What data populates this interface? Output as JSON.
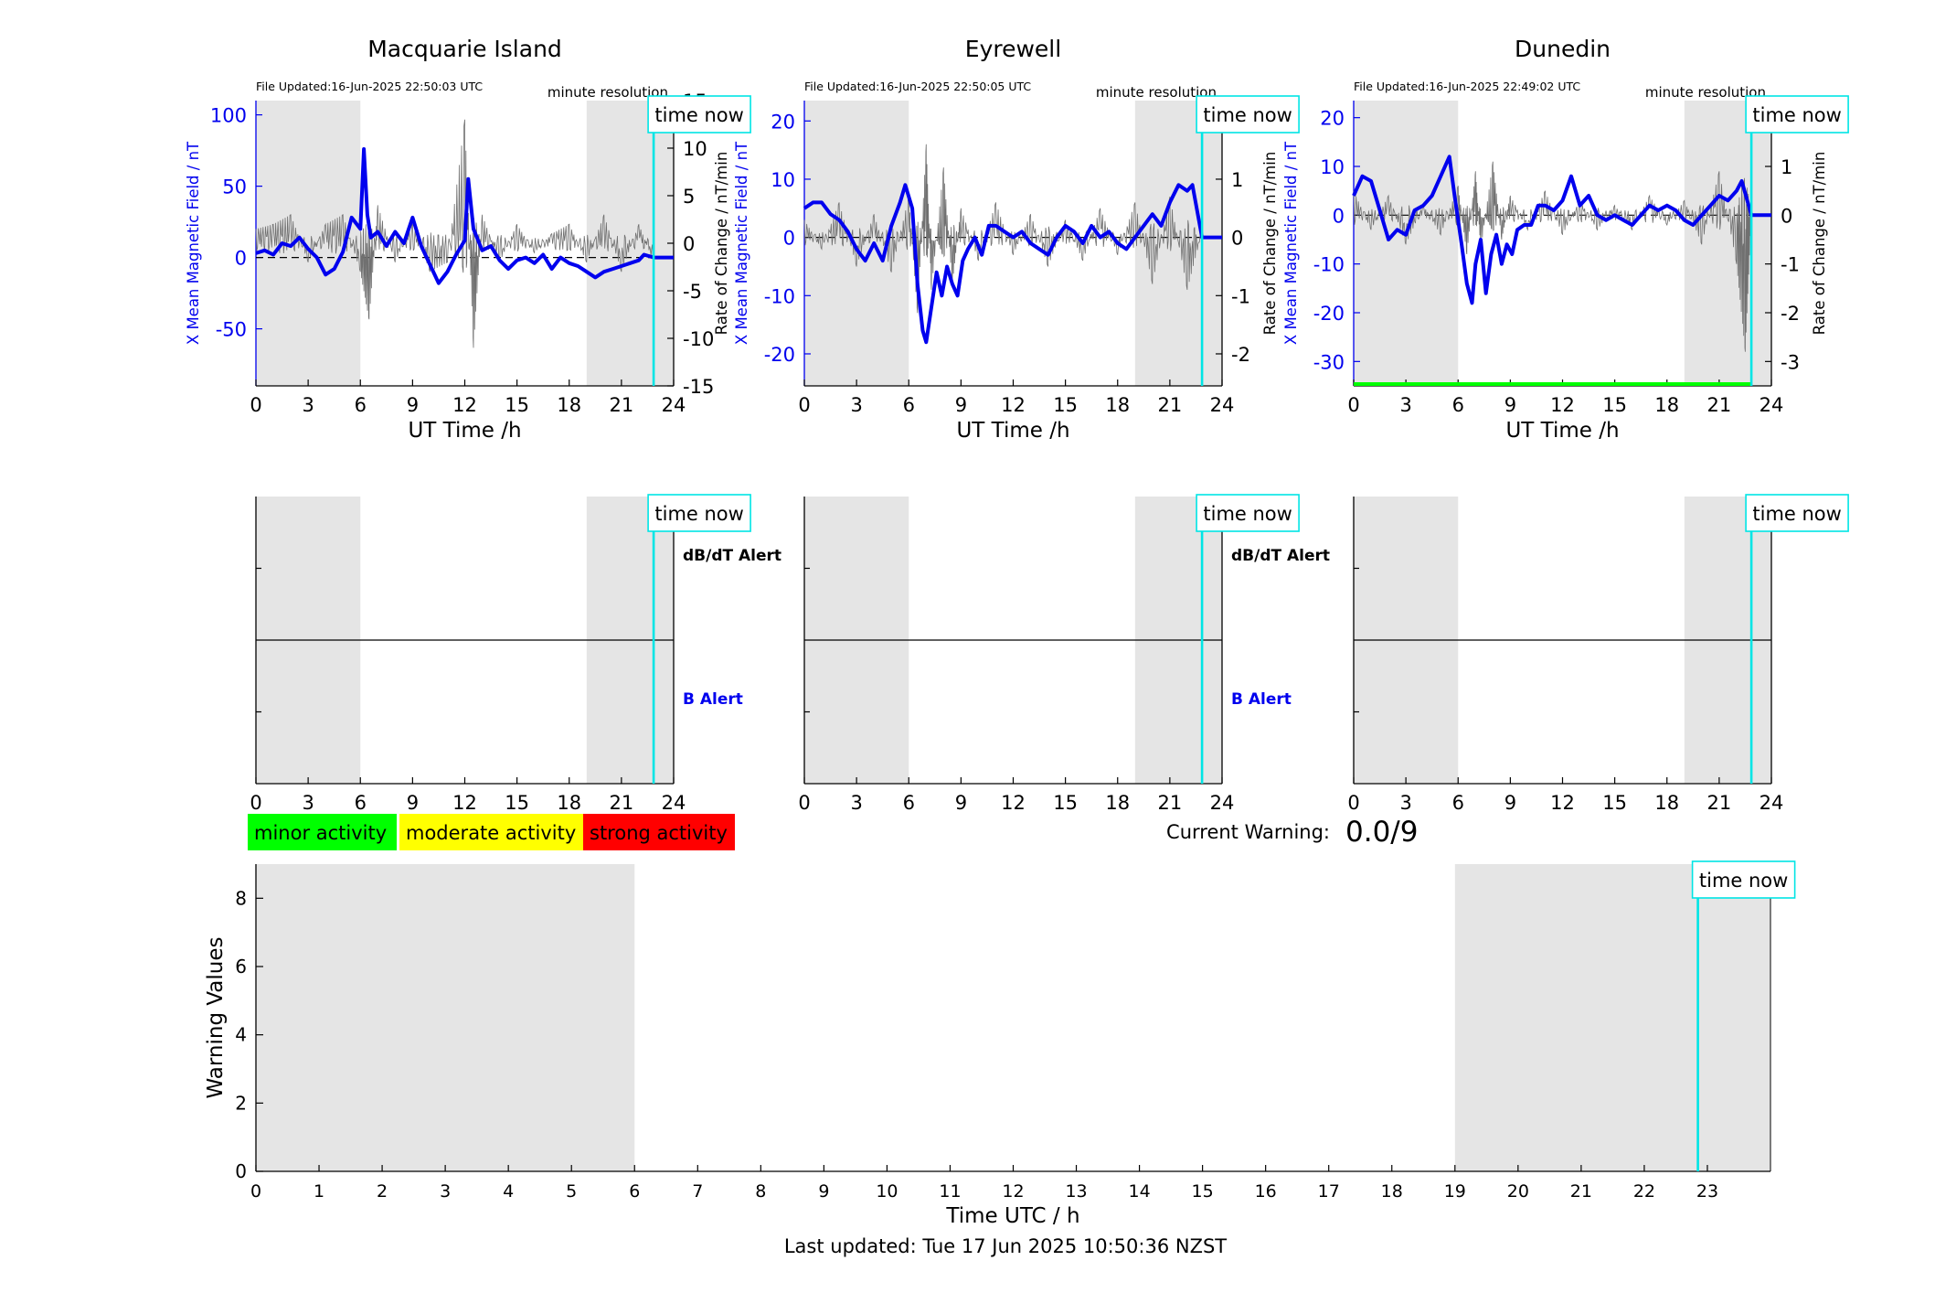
{
  "figure": {
    "footer": "Last updated: Tue 17 Jun 2025 10:50:36 NZST",
    "time_now_label": "time now",
    "colors": {
      "series_blue": "#0000ee",
      "noise_gray": "#707070",
      "time_now_cyan": "#00e5e5",
      "night_shade": "#e5e5e5",
      "minor": "#00ff00",
      "moderate": "#ffff00",
      "strong": "#ff0000"
    }
  },
  "chart_data": [
    {
      "type": "line",
      "title": "Macquarie Island",
      "file_updated": "File Updated:16-Jun-2025 22:50:03 UTC",
      "resolution_label": "minute resolution",
      "xlabel": "UT Time /h",
      "ylabel_left": "X Mean Magnetic Field / nT",
      "ylabel_right": "Rate of Change / nT/min",
      "xlim": [
        0,
        24
      ],
      "xticks": [
        0,
        3,
        6,
        9,
        12,
        15,
        18,
        21,
        24
      ],
      "ylim_left": [
        -90,
        110
      ],
      "yticks_left": [
        -50,
        0,
        50,
        100
      ],
      "ylim_right": [
        -15,
        15
      ],
      "yticks_right": [
        -15,
        -10,
        -5,
        0,
        5,
        10,
        15
      ],
      "night_shading": [
        [
          0,
          6
        ],
        [
          19,
          24
        ]
      ],
      "time_now": 22.85,
      "series": [
        {
          "name": "X Mean Magnetic Field",
          "axis": "left",
          "x": [
            0,
            0.5,
            1,
            1.5,
            2,
            2.5,
            3,
            3.5,
            4,
            4.5,
            5,
            5.5,
            6,
            6.2,
            6.4,
            6.6,
            7,
            7.5,
            8,
            8.5,
            9,
            9.5,
            10,
            10.5,
            11,
            11.5,
            12,
            12.2,
            12.5,
            13,
            13.5,
            14,
            14.5,
            15,
            15.5,
            16,
            16.5,
            17,
            17.5,
            18,
            18.5,
            19,
            19.5,
            20,
            20.5,
            21,
            21.5,
            22,
            22.3,
            22.85,
            24
          ],
          "y": [
            3,
            5,
            2,
            10,
            8,
            14,
            6,
            0,
            -12,
            -8,
            4,
            28,
            20,
            76,
            30,
            14,
            18,
            8,
            18,
            10,
            28,
            8,
            -5,
            -18,
            -10,
            2,
            12,
            55,
            20,
            5,
            8,
            -2,
            -8,
            -2,
            0,
            -4,
            2,
            -8,
            0,
            -4,
            -6,
            -10,
            -14,
            -10,
            -8,
            -6,
            -4,
            -2,
            2,
            0,
            0
          ]
        },
        {
          "name": "Rate of Change",
          "axis": "right",
          "x": [
            0,
            1,
            2,
            3,
            4,
            5,
            6,
            6.5,
            7,
            8,
            9,
            10,
            11,
            12,
            12.5,
            13,
            14,
            15,
            16,
            17,
            18,
            19,
            20,
            21,
            22,
            22.85
          ],
          "y": [
            1.5,
            2,
            3,
            -2,
            2,
            3,
            -3,
            -8,
            4,
            -2,
            2,
            -3,
            -2,
            13,
            -11,
            3,
            -2,
            2,
            -1,
            1,
            2,
            -2,
            3,
            -3,
            2,
            -2
          ]
        }
      ]
    },
    {
      "type": "line",
      "title": "Eyrewell",
      "file_updated": "File Updated:16-Jun-2025 22:50:05 UTC",
      "resolution_label": "minute resolution",
      "xlabel": "UT Time /h",
      "ylabel_left": "X Mean Magnetic Field / nT",
      "ylabel_right": "Rate of Change / nT/min",
      "xlim": [
        0,
        24
      ],
      "xticks": [
        0,
        3,
        6,
        9,
        12,
        15,
        18,
        21,
        24
      ],
      "ylim_left": [
        -25.5,
        23.5
      ],
      "yticks_left": [
        -20,
        -10,
        0,
        10,
        20
      ],
      "ylim_right": [
        -2.55,
        2.35
      ],
      "yticks_right": [
        -2,
        -1,
        0,
        1,
        2
      ],
      "night_shading": [
        [
          0,
          6
        ],
        [
          19,
          24
        ]
      ],
      "time_now": 22.85,
      "series": [
        {
          "name": "X Mean Magnetic Field",
          "axis": "left",
          "x": [
            0,
            0.5,
            1,
            1.5,
            2,
            2.5,
            3,
            3.5,
            4,
            4.5,
            5,
            5.5,
            5.8,
            6.2,
            6.5,
            6.8,
            7,
            7.3,
            7.6,
            7.9,
            8.2,
            8.5,
            8.8,
            9.1,
            9.4,
            9.8,
            10.2,
            10.6,
            11,
            11.5,
            12,
            12.5,
            13,
            13.5,
            14,
            14.5,
            15,
            15.5,
            16,
            16.5,
            17,
            17.5,
            18,
            18.5,
            19,
            19.5,
            20,
            20.5,
            21,
            21.5,
            22,
            22.3,
            22.85,
            24
          ],
          "y": [
            5,
            6,
            6,
            4,
            3,
            1,
            -2,
            -4,
            -1,
            -4,
            2,
            6,
            9,
            5,
            -8,
            -16,
            -18,
            -12,
            -6,
            -10,
            -5,
            -8,
            -10,
            -4,
            -2,
            0,
            -3,
            2,
            2,
            1,
            0,
            1,
            -1,
            -2,
            -3,
            0,
            2,
            1,
            -1,
            2,
            0,
            1,
            -1,
            -2,
            0,
            2,
            4,
            2,
            6,
            9,
            8,
            9,
            0,
            0
          ]
        },
        {
          "name": "Rate of Change",
          "axis": "right",
          "x": [
            0,
            1,
            2,
            3,
            4,
            5,
            6,
            6.5,
            7,
            7.3,
            8,
            8.5,
            9,
            10,
            11,
            12,
            13,
            14,
            15,
            16,
            17,
            18,
            19,
            20,
            21,
            22,
            22.85
          ],
          "y": [
            0.3,
            -0.2,
            0.6,
            -0.5,
            0.4,
            -0.6,
            0.7,
            -1.3,
            1.6,
            -0.9,
            1.2,
            -0.8,
            0.5,
            -0.4,
            0.6,
            -0.3,
            0.4,
            -0.5,
            0.3,
            -0.4,
            0.5,
            -0.3,
            0.6,
            -0.8,
            0.7,
            -0.9,
            0.1
          ]
        }
      ]
    },
    {
      "type": "line",
      "title": "Dunedin",
      "file_updated": "File Updated:16-Jun-2025 22:49:02 UTC",
      "resolution_label": "minute resolution",
      "xlabel": "UT Time /h",
      "ylabel_left": "X Mean Magnetic Field / nT",
      "ylabel_right": "Rate of Change / nT/min",
      "xlim": [
        0,
        24
      ],
      "xticks": [
        0,
        3,
        6,
        9,
        12,
        15,
        18,
        21,
        24
      ],
      "ylim_left": [
        -35,
        23.5
      ],
      "yticks_left": [
        -30,
        -20,
        -10,
        0,
        10,
        20
      ],
      "ylim_right": [
        -3.5,
        2.35
      ],
      "yticks_right": [
        -3,
        -2,
        -1,
        0,
        1,
        2
      ],
      "night_shading": [
        [
          0,
          6
        ],
        [
          19,
          24
        ]
      ],
      "time_now": 22.85,
      "status_bar_color": "#00ff00",
      "series": [
        {
          "name": "X Mean Magnetic Field",
          "axis": "left",
          "x": [
            0,
            0.5,
            1,
            1.5,
            2,
            2.5,
            3,
            3.5,
            4,
            4.5,
            5,
            5.5,
            5.8,
            6.2,
            6.5,
            6.8,
            7,
            7.3,
            7.6,
            7.9,
            8.2,
            8.5,
            8.8,
            9.1,
            9.4,
            9.8,
            10.2,
            10.6,
            11,
            11.5,
            12,
            12.5,
            13,
            13.5,
            14,
            14.5,
            15,
            15.5,
            16,
            16.5,
            17,
            17.5,
            18,
            18.5,
            19,
            19.5,
            20,
            20.5,
            21,
            21.5,
            22,
            22.3,
            22.85,
            24
          ],
          "y": [
            4,
            8,
            7,
            1,
            -5,
            -3,
            -4,
            1,
            2,
            4,
            8,
            12,
            4,
            -6,
            -14,
            -18,
            -10,
            -5,
            -16,
            -8,
            -4,
            -10,
            -6,
            -8,
            -3,
            -2,
            -2,
            2,
            2,
            1,
            3,
            8,
            2,
            4,
            0,
            -1,
            0,
            -1,
            -2,
            0,
            2,
            1,
            2,
            1,
            -1,
            -2,
            0,
            2,
            4,
            3,
            5,
            7,
            0,
            0
          ]
        },
        {
          "name": "Rate of Change",
          "axis": "right",
          "x": [
            0,
            1,
            2,
            3,
            4,
            5,
            6,
            6.5,
            7,
            7.3,
            8,
            8.5,
            9,
            10,
            11,
            12,
            13,
            14,
            15,
            16,
            17,
            18,
            19,
            20,
            21,
            22,
            22.5,
            22.85
          ],
          "y": [
            0.5,
            -0.3,
            0.4,
            -0.6,
            0.2,
            -0.4,
            0.6,
            -0.8,
            0.9,
            -0.7,
            1.1,
            -0.5,
            0.4,
            -0.3,
            0.5,
            -0.4,
            0.3,
            -0.3,
            0.2,
            -0.3,
            0.4,
            -0.2,
            0.3,
            -0.6,
            0.9,
            -1.0,
            -2.8,
            0.1
          ]
        }
      ]
    },
    {
      "type": "line",
      "title": "",
      "xlabel": "",
      "xlim": [
        0,
        24
      ],
      "xticks": [
        0,
        3,
        6,
        9,
        12,
        15,
        18,
        21,
        24
      ],
      "night_shading": [
        [
          0,
          6
        ],
        [
          19,
          24
        ]
      ],
      "time_now": 22.85,
      "right_labels": [
        "dB/dT Alert",
        "B Alert"
      ],
      "series": []
    },
    {
      "type": "line",
      "title": "",
      "xlabel": "",
      "xlim": [
        0,
        24
      ],
      "xticks": [
        0,
        3,
        6,
        9,
        12,
        15,
        18,
        21,
        24
      ],
      "night_shading": [
        [
          0,
          6
        ],
        [
          19,
          24
        ]
      ],
      "time_now": 22.85,
      "right_labels": [
        "dB/dT Alert",
        "B Alert"
      ],
      "series": []
    },
    {
      "type": "line",
      "title": "",
      "xlabel": "",
      "xlim": [
        0,
        24
      ],
      "xticks": [
        0,
        3,
        6,
        9,
        12,
        15,
        18,
        21,
        24
      ],
      "night_shading": [
        [
          0,
          6
        ],
        [
          19,
          24
        ]
      ],
      "time_now": 22.85,
      "right_labels": [],
      "series": []
    },
    {
      "type": "line",
      "title": "",
      "xlabel": "Time UTC / h",
      "ylabel": "Warning Values",
      "xlim": [
        0,
        24
      ],
      "xticks": [
        0,
        1,
        2,
        3,
        4,
        5,
        6,
        7,
        8,
        9,
        10,
        11,
        12,
        13,
        14,
        15,
        16,
        17,
        18,
        19,
        20,
        21,
        22,
        23
      ],
      "ylim": [
        0,
        9
      ],
      "yticks": [
        0,
        2,
        4,
        6,
        8
      ],
      "night_shading": [
        [
          0,
          6
        ],
        [
          19,
          24
        ]
      ],
      "time_now": 22.85,
      "legend": [
        "minor activity",
        "moderate activity",
        "strong activity"
      ],
      "current_warning_label": "Current Warning:",
      "current_warning_value": "0.0/9",
      "series": []
    }
  ]
}
